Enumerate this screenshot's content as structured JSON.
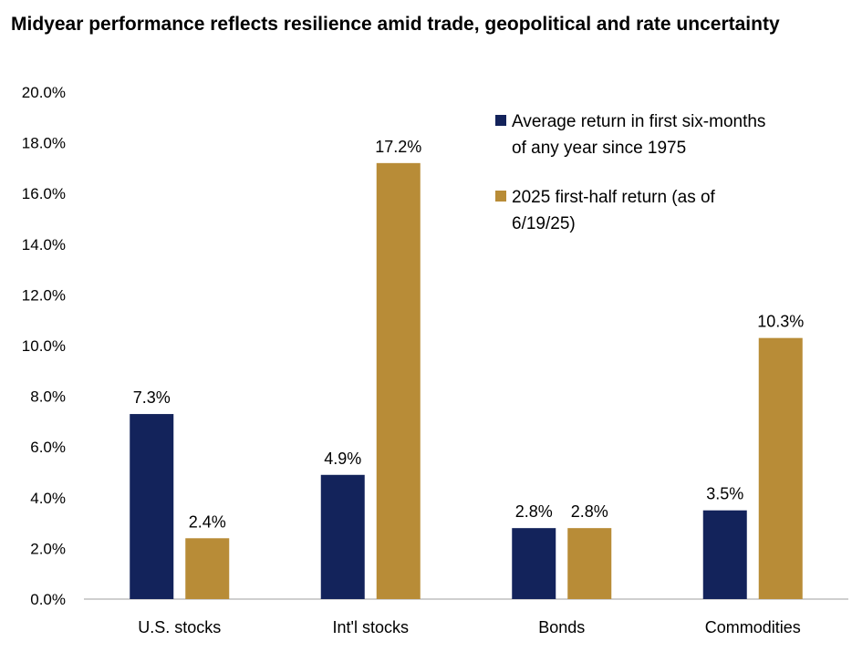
{
  "chart_data": {
    "type": "bar",
    "title": "Midyear performance reflects resilience amid trade, geopolitical and rate uncertainty",
    "categories": [
      "U.S. stocks",
      "Int'l stocks",
      "Bonds",
      "Commodities"
    ],
    "series": [
      {
        "name": "Average return in first six-months of any year since 1975",
        "name_lines": [
          "Average return in first six-months",
          "of any year since 1975"
        ],
        "color": "#13235b",
        "values": [
          7.3,
          4.9,
          2.8,
          3.5
        ],
        "labels": [
          "7.3%",
          "4.9%",
          "2.8%",
          "3.5%"
        ]
      },
      {
        "name": "2025 first-half return (as of 6/19/25)",
        "name_lines": [
          "2025 first-half return (as of",
          "6/19/25)"
        ],
        "color": "#b88c37",
        "values": [
          2.4,
          17.2,
          2.8,
          10.3
        ],
        "labels": [
          "2.4%",
          "17.2%",
          "2.8%",
          "10.3%"
        ]
      }
    ],
    "ylim": [
      0,
      20
    ],
    "yticks": [
      "0.0%",
      "2.0%",
      "4.0%",
      "6.0%",
      "8.0%",
      "10.0%",
      "12.0%",
      "14.0%",
      "16.0%",
      "18.0%",
      "20.0%"
    ],
    "xlabel": "",
    "ylabel": "",
    "grid": false,
    "legend_position": "top-right"
  }
}
